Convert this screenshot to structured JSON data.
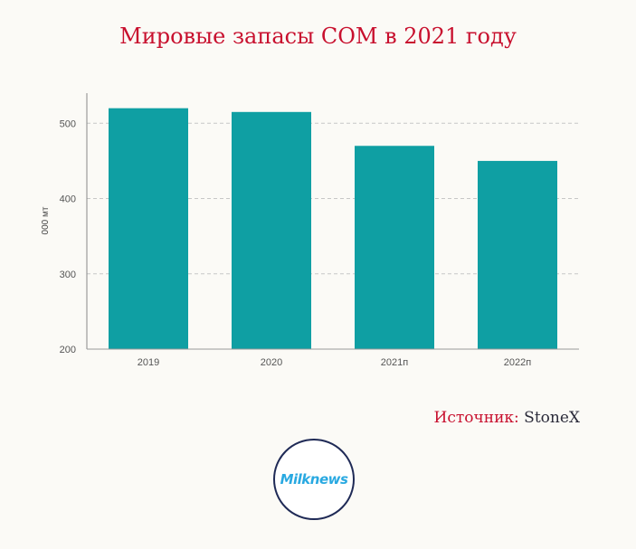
{
  "chart_data": {
    "type": "bar",
    "title": "Мировые запасы СОМ в 2021 году",
    "categories": [
      "2019",
      "2020",
      "2021п",
      "2022п"
    ],
    "values": [
      520,
      515,
      470,
      450
    ],
    "ylabel": "000 мт",
    "xlabel": "",
    "ylim": [
      200,
      540
    ],
    "yticks": [
      200,
      300,
      400,
      500
    ],
    "grid": true,
    "colors": {
      "bar": "#0f9fa3",
      "grid": "#c7c7c7",
      "title": "#c8102e"
    }
  },
  "source": {
    "label": "Источник:",
    "value": "StoneX"
  },
  "logo": {
    "text": "Milknews"
  }
}
